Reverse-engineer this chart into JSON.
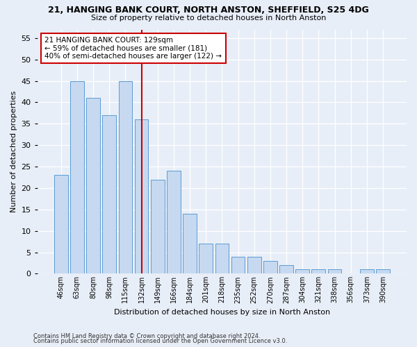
{
  "title": "21, HANGING BANK COURT, NORTH ANSTON, SHEFFIELD, S25 4DG",
  "subtitle": "Size of property relative to detached houses in North Anston",
  "xlabel": "Distribution of detached houses by size in North Anston",
  "ylabel": "Number of detached properties",
  "categories": [
    "46sqm",
    "63sqm",
    "80sqm",
    "98sqm",
    "115sqm",
    "132sqm",
    "149sqm",
    "166sqm",
    "184sqm",
    "201sqm",
    "218sqm",
    "235sqm",
    "252sqm",
    "270sqm",
    "287sqm",
    "304sqm",
    "321sqm",
    "338sqm",
    "356sqm",
    "373sqm",
    "390sqm"
  ],
  "values": [
    23,
    45,
    41,
    37,
    45,
    36,
    22,
    24,
    14,
    7,
    7,
    4,
    4,
    3,
    2,
    1,
    1,
    1,
    0,
    1,
    1
  ],
  "bar_color": "#c6d9f0",
  "bar_edge_color": "#5b9bd5",
  "vline_index": 5,
  "vline_color": "#cc0000",
  "annotation_text": "21 HANGING BANK COURT: 129sqm\n← 59% of detached houses are smaller (181)\n40% of semi-detached houses are larger (122) →",
  "annotation_box_color": "#ffffff",
  "annotation_box_edge_color": "#cc0000",
  "ylim": [
    0,
    57
  ],
  "yticks": [
    0,
    5,
    10,
    15,
    20,
    25,
    30,
    35,
    40,
    45,
    50,
    55
  ],
  "footnote1": "Contains HM Land Registry data © Crown copyright and database right 2024.",
  "footnote2": "Contains public sector information licensed under the Open Government Licence v3.0.",
  "bg_color": "#e8eef7",
  "plot_bg_color": "#e8eef7"
}
